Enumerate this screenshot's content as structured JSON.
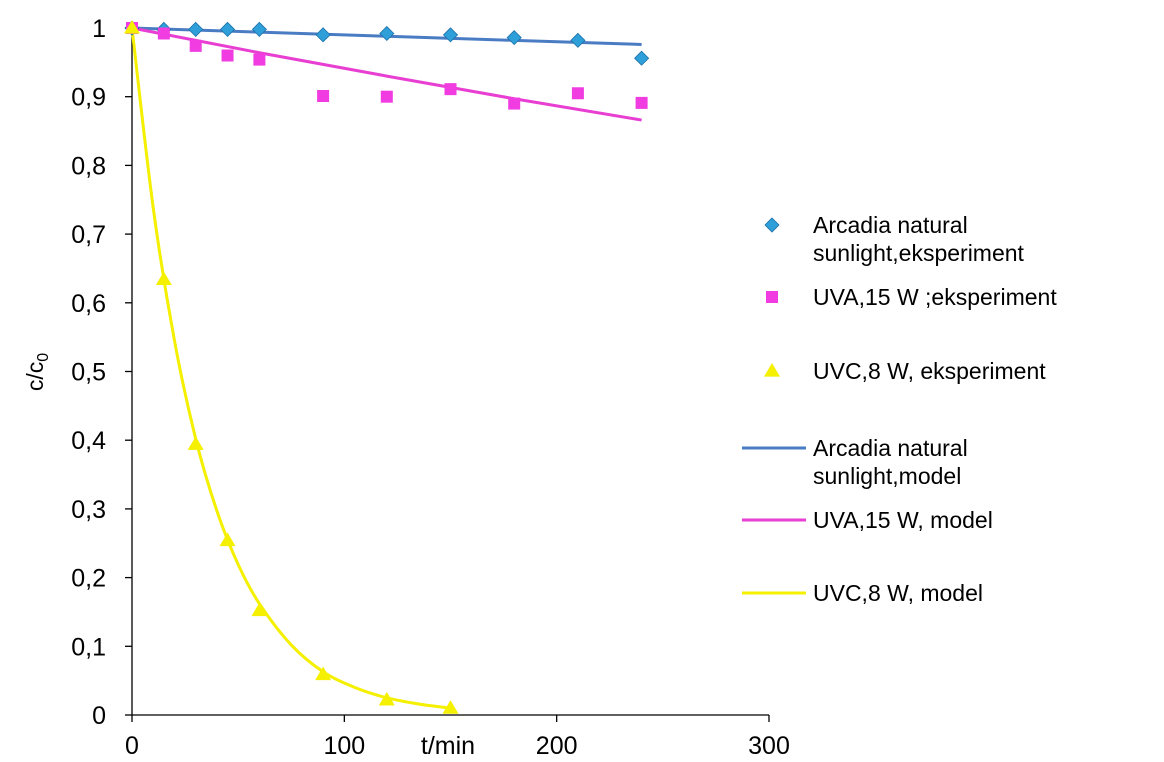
{
  "chart_data": {
    "type": "scatter",
    "title": "",
    "xlabel": "t/min",
    "ylabel": "c/c0",
    "ylabel_main": "c/c",
    "ylabel_sub": "0",
    "xlim": [
      0,
      300
    ],
    "ylim": [
      0,
      1
    ],
    "x_ticks": [
      0,
      100,
      200,
      300
    ],
    "x_tick_labels": [
      "0",
      "100",
      "200",
      "300"
    ],
    "y_ticks": [
      0,
      0.1,
      0.2,
      0.3,
      0.4,
      0.5,
      0.6,
      0.7,
      0.8,
      0.9,
      1
    ],
    "y_tick_labels": [
      "0",
      "0,1",
      "0,2",
      "0,3",
      "0,4",
      "0,5",
      "0,6",
      "0,7",
      "0,8",
      "0,9",
      "1"
    ],
    "grid": false,
    "legend_position": "right",
    "series": [
      {
        "name": "Arcadia natural sunlight,eksperiment",
        "legend_lines": [
          "Arcadia natural",
          "sunlight,eksperiment"
        ],
        "kind": "scatter",
        "marker": "diamond",
        "color": "#2e9fd8",
        "x": [
          0,
          15,
          30,
          45,
          60,
          90,
          120,
          150,
          180,
          210,
          240
        ],
        "y": [
          1.0,
          0.998,
          0.998,
          0.998,
          0.998,
          0.99,
          0.992,
          0.99,
          0.986,
          0.982,
          0.956
        ]
      },
      {
        "name": "UVA,15 W ;eksperiment",
        "legend_lines": [
          "UVA,15 W ;eksperiment"
        ],
        "kind": "scatter",
        "marker": "square",
        "color": "#f03ce0",
        "x": [
          0,
          15,
          30,
          45,
          60,
          90,
          120,
          150,
          180,
          210,
          240
        ],
        "y": [
          1.0,
          0.992,
          0.974,
          0.96,
          0.954,
          0.901,
          0.9,
          0.911,
          0.89,
          0.905,
          0.891
        ]
      },
      {
        "name": "UVC,8 W, eksperiment",
        "legend_lines": [
          "UVC,8 W, eksperiment"
        ],
        "kind": "scatter",
        "marker": "triangle",
        "color": "#f4f000",
        "x": [
          0,
          15,
          30,
          45,
          60,
          90,
          120,
          150
        ],
        "y": [
          1.0,
          0.634,
          0.394,
          0.254,
          0.152,
          0.059,
          0.022,
          0.01
        ]
      },
      {
        "name": "Arcadia natural sunlight,model",
        "legend_lines": [
          "Arcadia natural",
          "sunlight,model"
        ],
        "kind": "line",
        "color": "#4a7cc4",
        "x": [
          0,
          60,
          120,
          180,
          240
        ],
        "y": [
          1.0,
          0.994,
          0.988,
          0.982,
          0.976
        ]
      },
      {
        "name": "UVA,15 W, model",
        "legend_lines": [
          "UVA,15 W, model"
        ],
        "kind": "line",
        "color": "#e83ed2",
        "x": [
          0,
          60,
          120,
          180,
          240
        ],
        "y": [
          1.0,
          0.964,
          0.93,
          0.897,
          0.866
        ]
      },
      {
        "name": "UVC,8 W, model",
        "legend_lines": [
          "UVC,8 W, model"
        ],
        "kind": "line",
        "color": "#f4f000",
        "x": [
          0,
          10,
          20,
          30,
          40,
          50,
          60,
          75,
          90,
          105,
          120,
          135,
          150
        ],
        "y": [
          1.0,
          0.738,
          0.545,
          0.402,
          0.297,
          0.219,
          0.162,
          0.102,
          0.063,
          0.04,
          0.025,
          0.016,
          0.01
        ]
      }
    ]
  }
}
